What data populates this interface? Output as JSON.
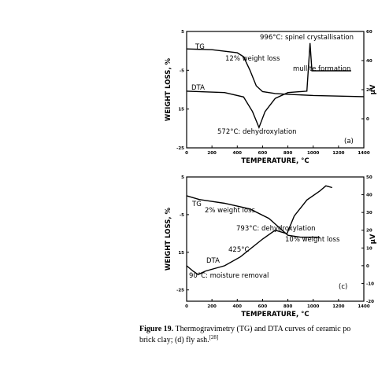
{
  "chart_data": [
    {
      "type": "line",
      "xlabel": "TEMPERATURE, °C",
      "ylabel": "WEIGHT LOSS, %",
      "y2label": "µV",
      "xlim": [
        0,
        1400
      ],
      "xticks": [
        0,
        200,
        400,
        600,
        800,
        1000,
        1200,
        1400
      ],
      "ylim": [
        -25,
        5
      ],
      "yticks": [
        5,
        -5,
        {
          "value": -15,
          "label": "15"
        },
        -25
      ],
      "y2lim": [
        -20,
        60
      ],
      "y2ticks": [
        60,
        40,
        20,
        0
      ],
      "series": [
        {
          "name": "TG",
          "color": "#000000",
          "x": [
            0,
            200,
            400,
            450,
            500,
            550,
            600,
            700,
            800,
            1000,
            1400
          ],
          "values": [
            0.5,
            0.3,
            -0.5,
            -1.5,
            -5,
            -9,
            -10.5,
            -11,
            -11.2,
            -11.5,
            -11.8
          ]
        },
        {
          "name": "DTA",
          "color": "#000000",
          "axis": "y2",
          "x": [
            0,
            300,
            450,
            520,
            572,
            620,
            700,
            800,
            950,
            975,
            990,
            1200,
            1300
          ],
          "values": [
            19,
            18,
            15,
            5,
            -6,
            5,
            14,
            18,
            19,
            52,
            33,
            33,
            33
          ]
        }
      ],
      "annotations": [
        "996°C: spinel crystallisation",
        "12% weight loss",
        "mullite formation",
        "572°C: dehydroxylation",
        "(a)"
      ]
    },
    {
      "type": "line",
      "xlabel": "TEMPERATURE, °C",
      "ylabel": "WEIGHT LOSS, %",
      "y2label": "µV",
      "xlim": [
        0,
        1400
      ],
      "xticks": [
        0,
        200,
        400,
        600,
        800,
        1000,
        1200,
        1400
      ],
      "ylim": [
        -28,
        5
      ],
      "yticks": [
        5,
        -5,
        {
          "value": -15,
          "label": "15"
        },
        -25
      ],
      "y2lim": [
        -20,
        50
      ],
      "y2ticks": [
        50,
        40,
        30,
        20,
        10,
        0,
        -10,
        -20
      ],
      "series": [
        {
          "name": "TG",
          "color": "#000000",
          "x": [
            0,
            100,
            300,
            500,
            650,
            750,
            800,
            900,
            1000,
            1050
          ],
          "values": [
            0,
            -1,
            -2,
            -3.5,
            -6,
            -9,
            -10.5,
            -11,
            -11,
            -11
          ]
        },
        {
          "name": "DTA",
          "color": "#000000",
          "axis": "y2",
          "x": [
            0,
            50,
            90,
            150,
            300,
            425,
            600,
            700,
            793,
            850,
            950,
            1050,
            1100,
            1150
          ],
          "values": [
            0,
            -3,
            -5,
            -3,
            0,
            5,
            15,
            20,
            18,
            28,
            37,
            42,
            45,
            44
          ]
        }
      ],
      "annotations": [
        "2% weight loss",
        "793°C: dehydroxylation",
        "10% weight loss",
        "425°C",
        "90°C: moisture removal",
        "(c)"
      ]
    }
  ],
  "caption": {
    "label": "Figure 19.",
    "line1": "Thermogravimetry (TG) and DTA curves of ceramic po",
    "line2": "brick clay; (d) fly ash.",
    "ref": "[28]"
  }
}
